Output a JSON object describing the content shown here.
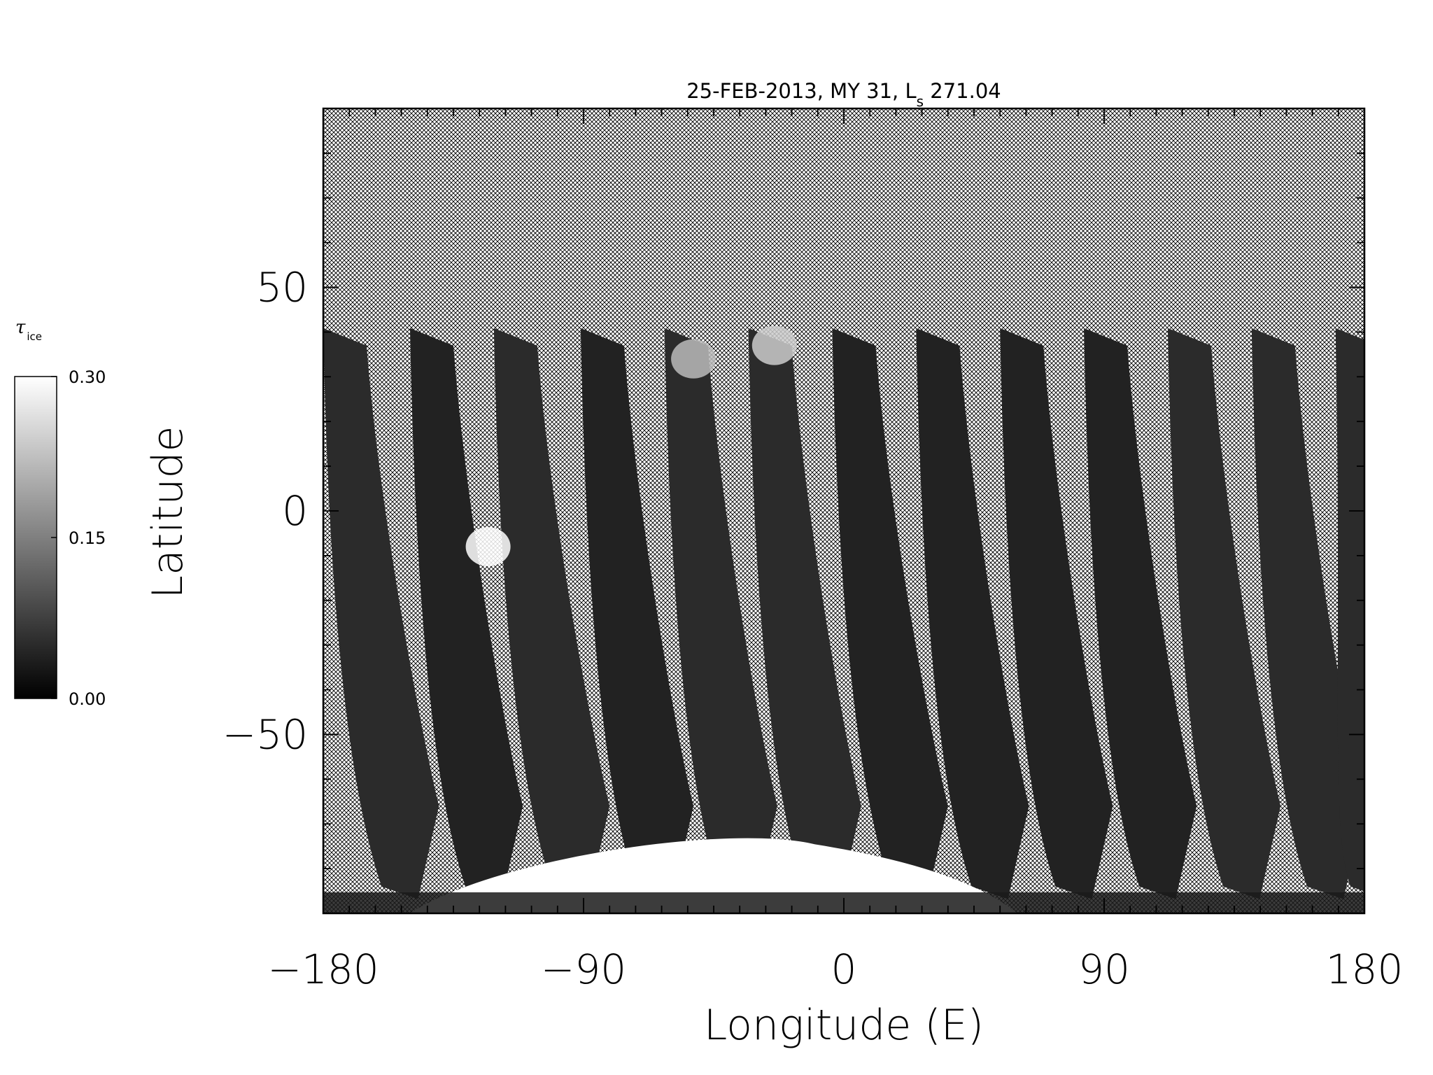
{
  "chart_data": {
    "type": "heatmap",
    "title": {
      "pre": "25-FEB-2013, MY 31,  L",
      "sub": "s",
      "post": " 271.04"
    },
    "xlabel": "Longitude (E)",
    "ylabel": "Latitude",
    "xlim": [
      -180,
      180
    ],
    "ylim": [
      -90,
      90
    ],
    "x_tick_labels": [
      {
        "value": -180,
        "label": "−180"
      },
      {
        "value": -90,
        "label": "−90"
      },
      {
        "value": 0,
        "label": "0"
      },
      {
        "value": 90,
        "label": "90"
      },
      {
        "value": 180,
        "label": "180"
      }
    ],
    "y_tick_labels": [
      {
        "value": 50,
        "label": "50"
      },
      {
        "value": 0,
        "label": "0"
      },
      {
        "value": -50,
        "label": "−50"
      }
    ],
    "x_major_step": 90,
    "x_minor_step": 9,
    "y_major_step": 50,
    "y_minor_step": 10,
    "colorbar": {
      "title_symbol": "τ",
      "title_sub": "ice",
      "range": [
        0.0,
        0.3
      ],
      "ticks": [
        {
          "value": 0.3,
          "label": "0.30"
        },
        {
          "value": 0.15,
          "label": "0.15"
        },
        {
          "value": 0.0,
          "label": "0.00"
        }
      ],
      "colormap": "grayscale",
      "low_color": "#000000",
      "high_color": "#ffffff"
    },
    "no_data_fill": "crosshatch",
    "swaths": [
      {
        "lon_top": -180,
        "lon_bottom": -155,
        "value": 0.05
      },
      {
        "lon_top": -150,
        "lon_bottom": -126,
        "value": 0.04
      },
      {
        "lon_top": -121,
        "lon_bottom": -96,
        "value": 0.05
      },
      {
        "lon_top": -91,
        "lon_bottom": -67,
        "value": 0.04
      },
      {
        "lon_top": -62,
        "lon_bottom": -38,
        "value": 0.05
      },
      {
        "lon_top": -33,
        "lon_bottom": -9,
        "value": 0.05
      },
      {
        "lon_top": -4,
        "lon_bottom": 21,
        "value": 0.04
      },
      {
        "lon_top": 25,
        "lon_bottom": 49,
        "value": 0.04
      },
      {
        "lon_top": 54,
        "lon_bottom": 78,
        "value": 0.04
      },
      {
        "lon_top": 83,
        "lon_bottom": 107,
        "value": 0.04
      },
      {
        "lon_top": 112,
        "lon_bottom": 136,
        "value": 0.05
      },
      {
        "lon_top": 141,
        "lon_bottom": 165,
        "value": 0.05
      },
      {
        "lon_top": 170,
        "lon_bottom": 180,
        "value": 0.05
      }
    ],
    "polar_cap": {
      "lon_range": [
        -150,
        60
      ],
      "lat_peak": -73,
      "value": 0.3
    },
    "bright_patches": [
      {
        "lon": -52,
        "lat": 34,
        "value": 0.22
      },
      {
        "lon": -24,
        "lat": 37,
        "value": 0.24
      },
      {
        "lon": -123,
        "lat": -8,
        "value": 0.3
      }
    ]
  }
}
